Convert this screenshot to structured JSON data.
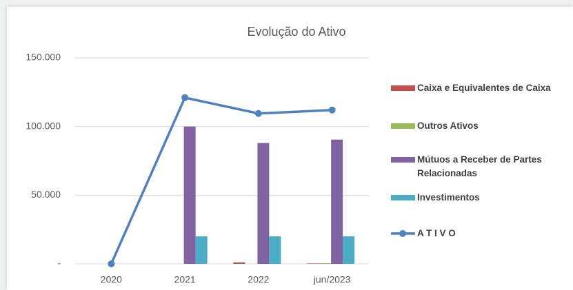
{
  "chart_data": {
    "type": "bar-line",
    "title": "Evolução do Ativo",
    "categories": [
      "2020",
      "2021",
      "2022",
      "jun/2023"
    ],
    "series": [
      {
        "name": "Caixa e Equivalentes de Caixa",
        "type": "bar",
        "color": "#c0504d",
        "values": [
          0,
          0,
          1000,
          300
        ]
      },
      {
        "name": "Outros Ativos",
        "type": "bar",
        "color": "#9bbb59",
        "values": [
          0,
          0,
          0,
          500
        ]
      },
      {
        "name": "Mútuos a Receber de Partes Relacionadas",
        "type": "bar",
        "color": "#8064a2",
        "values": [
          0,
          100000,
          88000,
          90500
        ]
      },
      {
        "name": "Investimentos",
        "type": "bar",
        "color": "#4bacc6",
        "values": [
          0,
          20000,
          20000,
          20000
        ]
      },
      {
        "name": "A T I V O",
        "type": "line",
        "color": "#4f81bd",
        "values": [
          0,
          121000,
          109500,
          112000
        ]
      }
    ],
    "ylim": [
      0,
      150000
    ],
    "yticks": [
      {
        "value": 0,
        "label": "-"
      },
      {
        "value": 50000,
        "label": "50.000"
      },
      {
        "value": 100000,
        "label": "100.000"
      },
      {
        "value": 150000,
        "label": "150.000"
      }
    ],
    "grid": true,
    "legend": "right"
  }
}
